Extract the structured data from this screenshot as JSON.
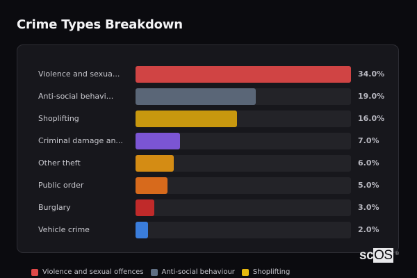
{
  "header": {
    "title": "Crime Types Breakdown"
  },
  "chart_data": {
    "type": "bar",
    "orientation": "horizontal",
    "title": "Crime Types Breakdown",
    "xlabel": "",
    "ylabel": "",
    "unit": "%",
    "xlim": [
      0,
      34
    ],
    "grid": false,
    "legend_position": "bottom",
    "categories": [
      "Violence and sexual offences",
      "Anti-social behaviour",
      "Shoplifting",
      "Criminal damage and arson",
      "Other theft",
      "Public order",
      "Burglary",
      "Vehicle crime"
    ],
    "display_labels": [
      "Violence and sexua...",
      "Anti-social behavi...",
      "Shoplifting",
      "Criminal damage an...",
      "Other theft",
      "Public order",
      "Burglary",
      "Vehicle crime"
    ],
    "values": [
      34.0,
      19.0,
      16.0,
      7.0,
      6.0,
      5.0,
      3.0,
      2.0
    ],
    "value_labels": [
      "34.0%",
      "19.0%",
      "16.0%",
      "7.0%",
      "6.0%",
      "5.0%",
      "3.0%",
      "2.0%"
    ],
    "colors": [
      "#d04444",
      "#5a6677",
      "#c8980f",
      "#7b55d4",
      "#d48c14",
      "#d76a1c",
      "#c02a2a",
      "#3a7ddb"
    ],
    "legend": [
      {
        "label": "Violence and sexual offences",
        "color": "#e04848"
      },
      {
        "label": "Anti-social behaviour",
        "color": "#5f6e83"
      },
      {
        "label": "Shoplifting",
        "color": "#e8b80e"
      }
    ]
  },
  "rows": [
    {
      "label": "Violence and sexua...",
      "pct": "34.0%",
      "value": 34.0,
      "color": "#d04444"
    },
    {
      "label": "Anti-social behavi...",
      "pct": "19.0%",
      "value": 19.0,
      "color": "#5a6677"
    },
    {
      "label": "Shoplifting",
      "pct": "16.0%",
      "value": 16.0,
      "color": "#c8980f"
    },
    {
      "label": "Criminal damage an...",
      "pct": "7.0%",
      "value": 7.0,
      "color": "#7b55d4"
    },
    {
      "label": "Other theft",
      "pct": "6.0%",
      "value": 6.0,
      "color": "#d48c14"
    },
    {
      "label": "Public order",
      "pct": "5.0%",
      "value": 5.0,
      "color": "#d76a1c"
    },
    {
      "label": "Burglary",
      "pct": "3.0%",
      "value": 3.0,
      "color": "#c02a2a"
    },
    {
      "label": "Vehicle crime",
      "pct": "2.0%",
      "value": 2.0,
      "color": "#3a7ddb"
    }
  ],
  "legend": [
    {
      "label": "Violence and sexual offences",
      "color": "#e04848"
    },
    {
      "label": "Anti-social behaviour",
      "color": "#5f6e83"
    },
    {
      "label": "Shoplifting",
      "color": "#e8b80e"
    }
  ],
  "watermark": {
    "prefix": "sc",
    "boxed": "OS",
    "mark": "®"
  }
}
